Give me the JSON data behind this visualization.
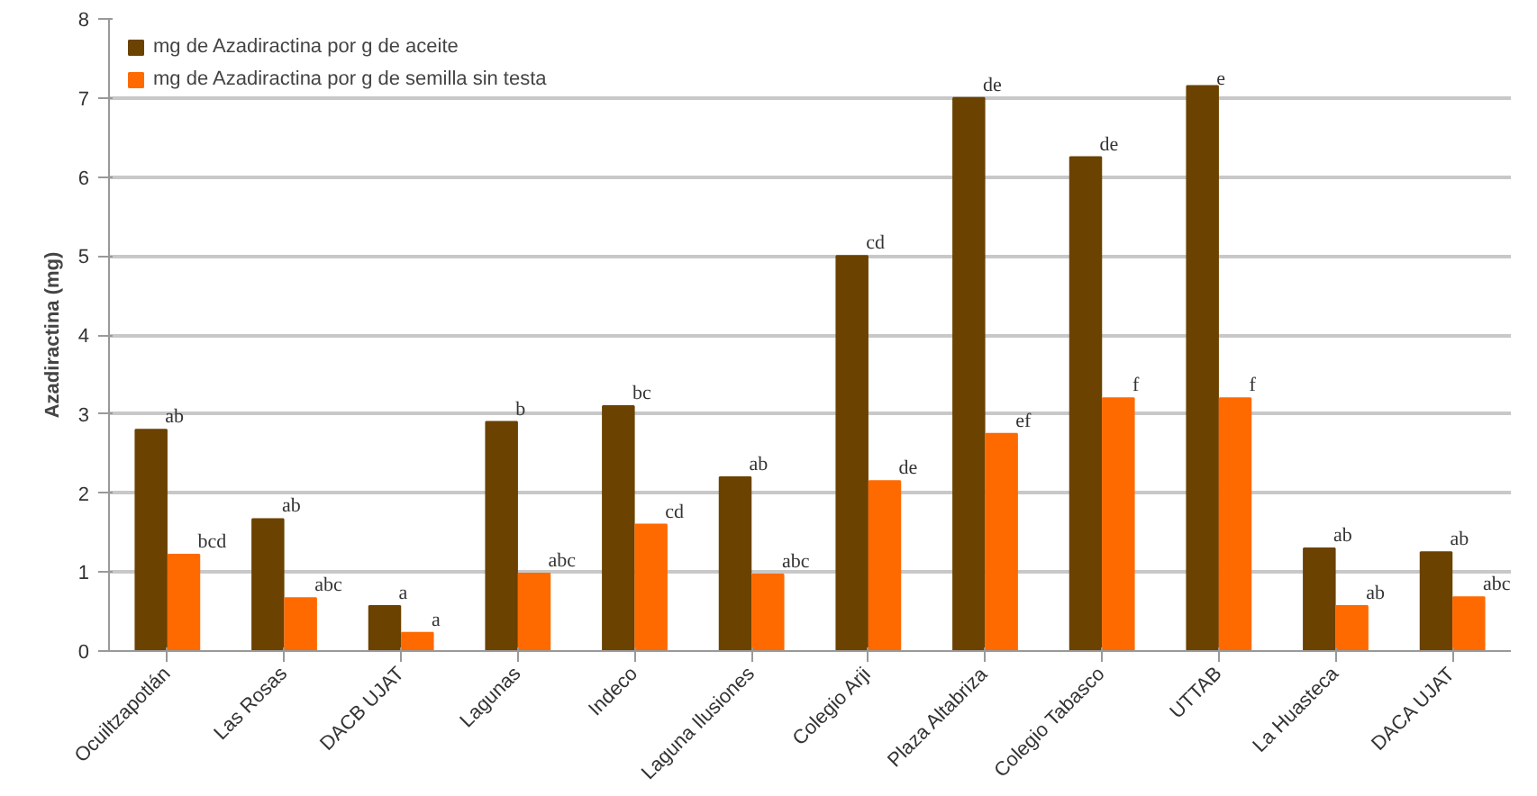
{
  "chart_data": {
    "type": "bar",
    "ylabel": "Azadiractina (mg)",
    "categories": [
      "Ocuiltzapotlán",
      "Las Rosas",
      "DACB UJAT",
      "Lagunas",
      "Indeco",
      "Laguna Ilusiones",
      "Colegio Arji",
      "Plaza Altabriza",
      "Colegio Tabasco",
      "UTTAB",
      "La Huasteca",
      "DACA UJAT"
    ],
    "series": [
      {
        "name": "mg de Azadiractina por g de aceite",
        "color": "#6b4200",
        "values": [
          2.8,
          1.67,
          0.57,
          2.9,
          3.1,
          2.2,
          5.0,
          7.0,
          6.25,
          7.15,
          1.3,
          1.25
        ],
        "value_labels": [
          "ab",
          "ab",
          "a",
          "b",
          "bc",
          "ab",
          "cd",
          "de",
          "de",
          "e",
          "ab",
          "ab"
        ]
      },
      {
        "name": "mg de Azadiractina por g de semilla sin testa",
        "color": "#ff6a00",
        "values": [
          1.22,
          0.67,
          0.23,
          0.98,
          1.6,
          0.97,
          2.15,
          2.75,
          3.2,
          3.2,
          0.57,
          0.68
        ],
        "value_labels": [
          "bcd",
          "abc",
          "a",
          "abc",
          "cd",
          "abc",
          "de",
          "ef",
          "f",
          "f",
          "ab",
          "abc"
        ]
      }
    ],
    "ylim": [
      0,
      8
    ],
    "yticks": [
      0,
      1,
      2,
      3,
      4,
      5,
      6,
      7,
      8
    ],
    "grid": "y",
    "legend": "top left"
  }
}
